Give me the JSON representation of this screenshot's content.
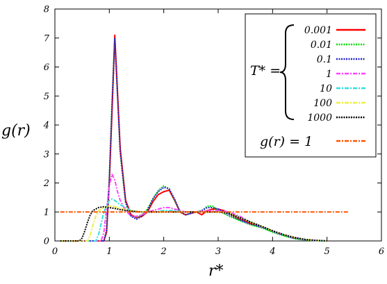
{
  "chart_data": {
    "type": "line",
    "xlabel": "r*",
    "ylabel": "g(r)",
    "xlim": [
      0,
      6
    ],
    "ylim": [
      0,
      8
    ],
    "xticks": [
      "0",
      "1",
      "2",
      "3",
      "4",
      "5",
      "6"
    ],
    "yticks": [
      "0",
      "1",
      "2",
      "3",
      "4",
      "5",
      "6",
      "7",
      "8"
    ],
    "grid": false,
    "legend_position": "top-right",
    "legend_group_label": "T* =",
    "series": [
      {
        "name": "0.001",
        "color": "#ff0000",
        "style": "solid",
        "x": [
          0.1,
          0.9,
          0.95,
          1.0,
          1.05,
          1.1,
          1.2,
          1.3,
          1.4,
          1.5,
          1.6,
          1.7,
          1.8,
          1.9,
          2.0,
          2.1,
          2.2,
          2.3,
          2.4,
          2.5,
          2.6,
          2.7,
          2.8,
          2.9,
          3.0,
          3.1,
          3.2,
          3.4,
          3.6,
          3.8,
          4.0,
          4.2,
          4.4,
          4.6,
          4.8,
          5.0
        ],
        "y": [
          0,
          0,
          0.3,
          2.0,
          4.5,
          7.1,
          3.2,
          1.4,
          0.9,
          0.8,
          0.85,
          1.0,
          1.35,
          1.6,
          1.7,
          1.75,
          1.4,
          1.0,
          0.9,
          0.95,
          1.0,
          0.9,
          1.05,
          1.1,
          1.1,
          1.05,
          0.95,
          0.75,
          0.6,
          0.5,
          0.35,
          0.2,
          0.1,
          0.05,
          0.02,
          0
        ]
      },
      {
        "name": "0.01",
        "color": "#00dd00",
        "style": "dotted",
        "x": [
          0.1,
          0.9,
          0.95,
          1.0,
          1.05,
          1.1,
          1.2,
          1.3,
          1.4,
          1.5,
          1.6,
          1.7,
          1.8,
          1.9,
          2.0,
          2.1,
          2.2,
          2.3,
          2.4,
          2.5,
          2.6,
          2.7,
          2.8,
          2.9,
          3.0,
          3.1,
          3.2,
          3.4,
          3.6,
          3.8,
          4.0,
          4.2,
          4.4,
          4.6,
          4.8,
          5.0
        ],
        "y": [
          0,
          0,
          0.4,
          2.2,
          4.9,
          7.0,
          3.0,
          1.3,
          0.85,
          0.8,
          0.9,
          1.1,
          1.45,
          1.75,
          1.9,
          1.8,
          1.4,
          1.0,
          0.9,
          0.95,
          1.0,
          1.05,
          1.2,
          1.2,
          1.05,
          0.95,
          0.85,
          0.7,
          0.55,
          0.45,
          0.3,
          0.18,
          0.08,
          0.03,
          0.01,
          0
        ]
      },
      {
        "name": "0.1",
        "color": "#2222cc",
        "style": "dotted",
        "x": [
          0.1,
          0.9,
          0.95,
          1.0,
          1.05,
          1.1,
          1.2,
          1.3,
          1.4,
          1.5,
          1.6,
          1.7,
          1.8,
          1.9,
          2.0,
          2.1,
          2.2,
          2.3,
          2.4,
          2.5,
          2.6,
          2.7,
          2.8,
          2.9,
          3.0,
          3.1,
          3.2,
          3.4,
          3.6,
          3.8,
          4.0,
          4.2,
          4.4,
          4.6,
          4.8,
          5.0
        ],
        "y": [
          0,
          0,
          0.35,
          2.1,
          4.7,
          7.0,
          3.1,
          1.35,
          0.85,
          0.75,
          0.85,
          1.05,
          1.45,
          1.7,
          1.85,
          1.8,
          1.45,
          1.0,
          0.9,
          0.95,
          1.0,
          1.05,
          1.15,
          1.15,
          1.1,
          1.0,
          0.9,
          0.72,
          0.58,
          0.48,
          0.33,
          0.2,
          0.09,
          0.04,
          0.01,
          0
        ]
      },
      {
        "name": "1",
        "color": "#ff44ff",
        "style": "dash-dot",
        "x": [
          0.1,
          0.85,
          0.9,
          0.95,
          1.0,
          1.05,
          1.1,
          1.15,
          1.2,
          1.3,
          1.4,
          1.5,
          1.6,
          1.7,
          1.8,
          1.9,
          2.0,
          2.1,
          2.2,
          2.3,
          2.4,
          2.5,
          2.6,
          2.8,
          3.0,
          3.2,
          3.4,
          3.6,
          3.8,
          4.0,
          4.2,
          4.4,
          4.6,
          4.8,
          5.0
        ],
        "y": [
          0,
          0,
          0.3,
          1.1,
          1.9,
          2.3,
          2.1,
          1.7,
          1.4,
          1.05,
          0.85,
          0.85,
          0.9,
          1.0,
          1.05,
          1.1,
          1.15,
          1.15,
          1.1,
          1.05,
          1.0,
          1.0,
          1.0,
          1.05,
          1.05,
          1.0,
          0.85,
          0.65,
          0.5,
          0.35,
          0.22,
          0.12,
          0.05,
          0.02,
          0
        ]
      },
      {
        "name": "10",
        "color": "#33dddd",
        "style": "dash-dot",
        "x": [
          0.1,
          0.75,
          0.8,
          0.85,
          0.9,
          1.0,
          1.05,
          1.1,
          1.2,
          1.3,
          1.4,
          1.5,
          1.6,
          1.8,
          2.0,
          2.2,
          2.4,
          2.6,
          2.8,
          3.0,
          3.2,
          3.4,
          3.6,
          3.8,
          4.0,
          4.2,
          4.4,
          4.6,
          4.8,
          5.0
        ],
        "y": [
          0,
          0,
          0.2,
          0.6,
          1.0,
          1.4,
          1.45,
          1.4,
          1.25,
          1.15,
          1.05,
          1.0,
          1.0,
          1.0,
          1.05,
          1.05,
          1.0,
          1.0,
          1.0,
          1.0,
          0.95,
          0.8,
          0.65,
          0.5,
          0.35,
          0.22,
          0.12,
          0.05,
          0.02,
          0
        ]
      },
      {
        "name": "100",
        "color": "#eeee44",
        "style": "dash-dot",
        "x": [
          0.1,
          0.6,
          0.65,
          0.7,
          0.75,
          0.8,
          0.9,
          1.0,
          1.1,
          1.2,
          1.4,
          1.6,
          1.8,
          2.0,
          2.4,
          2.8,
          3.0,
          3.2,
          3.4,
          3.6,
          3.8,
          4.0,
          4.2,
          4.4,
          4.6,
          4.8,
          5.0
        ],
        "y": [
          0,
          0,
          0.2,
          0.55,
          0.85,
          1.05,
          1.15,
          1.2,
          1.18,
          1.12,
          1.05,
          1.0,
          1.0,
          1.0,
          1.0,
          1.0,
          1.0,
          0.95,
          0.8,
          0.65,
          0.5,
          0.35,
          0.22,
          0.12,
          0.05,
          0.02,
          0
        ]
      },
      {
        "name": "1000",
        "color": "#000000",
        "style": "dotted",
        "x": [
          0.1,
          0.45,
          0.5,
          0.55,
          0.6,
          0.65,
          0.7,
          0.8,
          0.9,
          1.0,
          1.1,
          1.2,
          1.4,
          1.6,
          1.8,
          2.0,
          2.4,
          2.8,
          3.0,
          3.2,
          3.4,
          3.6,
          3.8,
          4.0,
          4.2,
          4.4,
          4.6,
          4.8,
          5.0
        ],
        "y": [
          0,
          0,
          0.1,
          0.35,
          0.65,
          0.9,
          1.05,
          1.15,
          1.18,
          1.15,
          1.12,
          1.08,
          1.03,
          1.0,
          1.0,
          1.0,
          1.0,
          1.0,
          1.0,
          0.95,
          0.8,
          0.65,
          0.5,
          0.35,
          0.22,
          0.12,
          0.05,
          0.02,
          0
        ]
      },
      {
        "name": "g(r) = 1",
        "color": "#ff5500",
        "style": "dash-dot",
        "x": [
          0.1,
          5.4
        ],
        "y": [
          1,
          1
        ]
      }
    ]
  }
}
